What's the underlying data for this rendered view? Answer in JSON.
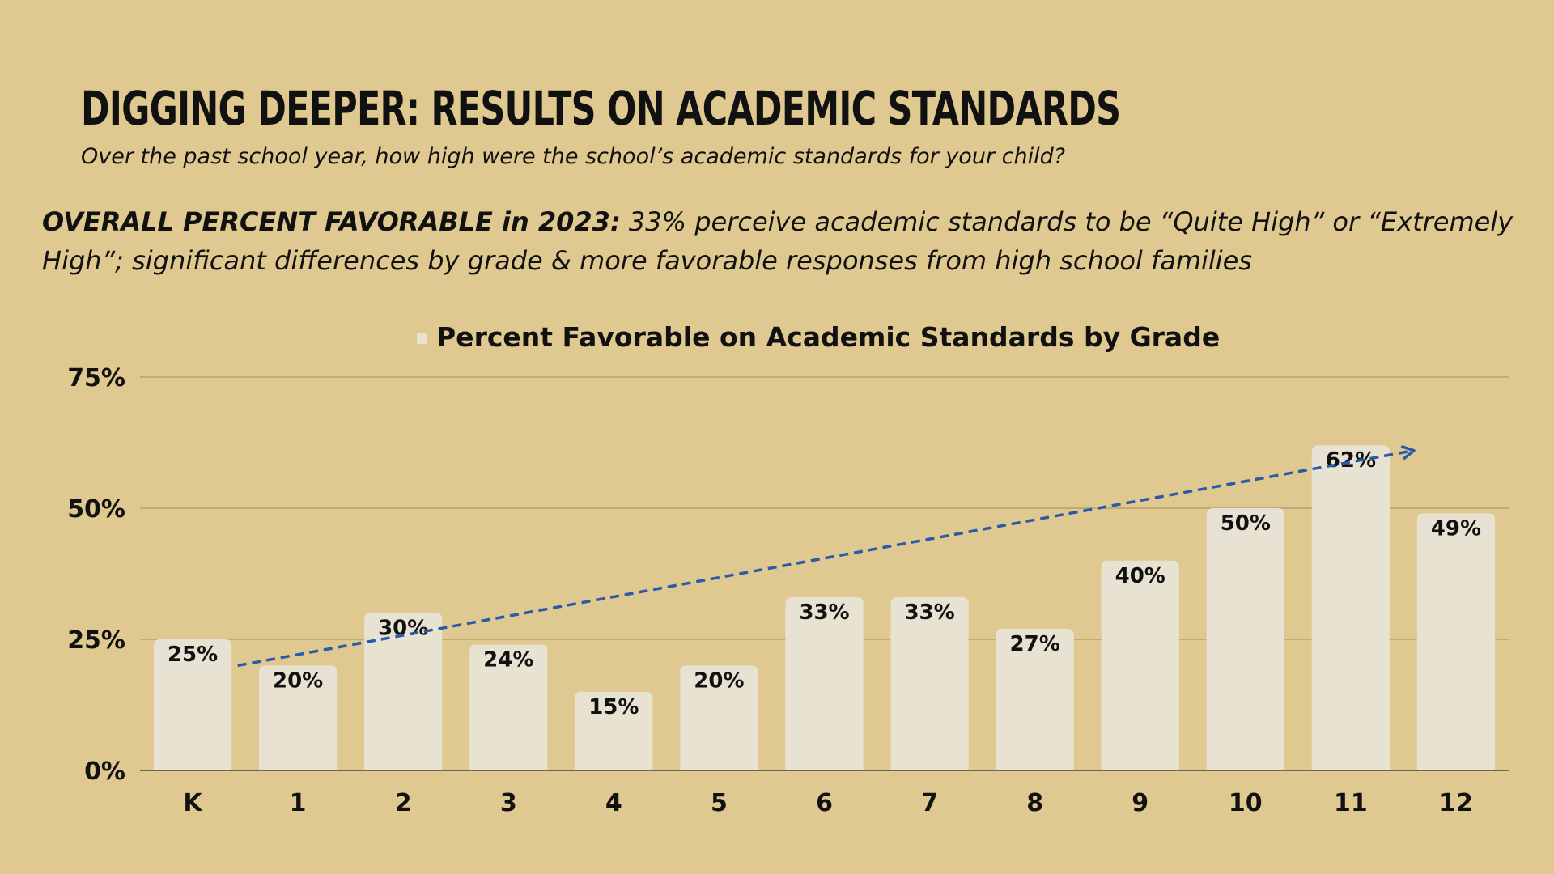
{
  "slide": {
    "title": "Digging Deeper: Results on Academic Standards",
    "question": "Over the past school year, how high were the school’s academic standards for your child?",
    "summary_lead": "OVERALL PERCENT FAVORABLE in 2023:",
    "summary_text": " 33% perceive academic standards to be “Quite High” or “Extremely High”; significant differences by grade & more favorable responses from high school families"
  },
  "colors": {
    "background": "#dfc990",
    "bar": "#e8e2d3",
    "gridline": "#b7a16a",
    "trend": "#2a5aa8",
    "text": "#111111"
  },
  "chart_data": {
    "type": "bar",
    "title": "Percent Favorable on Academic Standards by Grade",
    "legend": "top-center",
    "categories": [
      "K",
      "1",
      "2",
      "3",
      "4",
      "5",
      "6",
      "7",
      "8",
      "9",
      "10",
      "11",
      "12"
    ],
    "values": [
      25,
      20,
      30,
      24,
      15,
      20,
      33,
      33,
      27,
      40,
      50,
      62,
      49
    ],
    "data_labels": [
      "25%",
      "20%",
      "30%",
      "24%",
      "15%",
      "20%",
      "33%",
      "33%",
      "27%",
      "40%",
      "50%",
      "62%",
      "49%"
    ],
    "ylim": [
      0,
      75
    ],
    "yticks": [
      0,
      25,
      50,
      75
    ],
    "ytick_labels": [
      "0%",
      "25%",
      "50%",
      "75%"
    ],
    "grid": true,
    "trend_line": {
      "style": "dashed-arrow",
      "from": {
        "category": "K",
        "value": 20
      },
      "to": {
        "category": "11",
        "value": 61
      }
    }
  }
}
